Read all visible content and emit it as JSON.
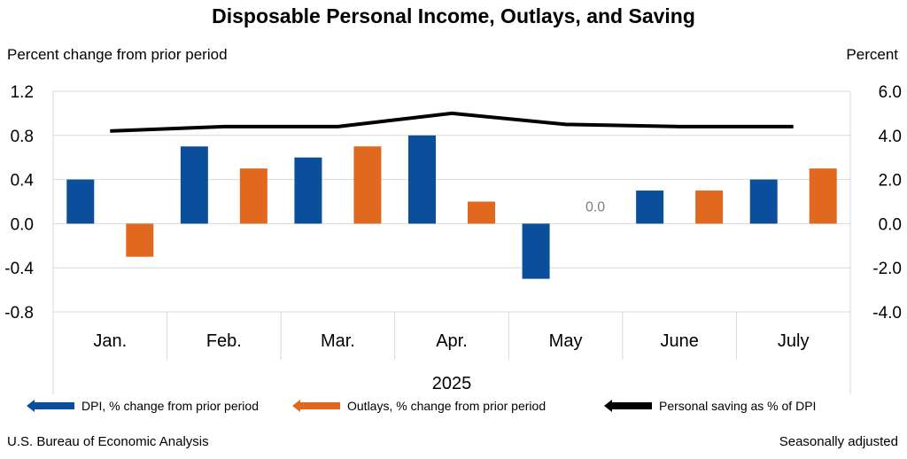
{
  "chart_data": {
    "type": "bar",
    "title": "Disposable Personal Income, Outlays, and Saving",
    "ylabel_left": "Percent change from prior period",
    "ylabel_right": "Percent",
    "xlabel": "2025",
    "categories": [
      "Jan.",
      "Feb.",
      "Mar.",
      "Apr.",
      "May",
      "June",
      "July"
    ],
    "ylim_left": [
      -0.8,
      1.2
    ],
    "yticks_left": [
      "1.2",
      "0.8",
      "0.4",
      "0.0",
      "-0.4",
      "-0.8"
    ],
    "ylim_right": [
      -4.0,
      6.0
    ],
    "yticks_right": [
      "6.0",
      "4.0",
      "2.0",
      "0.0",
      "-2.0",
      "-4.0"
    ],
    "grid": true,
    "legend_position": "bottom",
    "series": [
      {
        "name": "DPI, % change from prior period",
        "kind": "bar",
        "axis": "left",
        "color": "#0b4f9c",
        "values": [
          0.4,
          0.7,
          0.6,
          0.8,
          -0.5,
          0.3,
          0.4
        ]
      },
      {
        "name": "Outlays, % change from prior period",
        "kind": "bar",
        "axis": "left",
        "color": "#e0681f",
        "values": [
          -0.3,
          0.5,
          0.7,
          0.2,
          0.0,
          0.3,
          0.5
        ]
      },
      {
        "name": "Personal saving as % of DPI",
        "kind": "line",
        "axis": "right",
        "color": "#000000",
        "values": [
          4.2,
          4.4,
          4.4,
          5.0,
          4.5,
          4.4,
          4.4
        ]
      }
    ],
    "annotations": [
      {
        "text": "0.0",
        "category": "May",
        "series": "Outlays, % change from prior period"
      }
    ]
  },
  "footer": {
    "source": "U.S. Bureau of Economic Analysis",
    "note": "Seasonally adjusted"
  }
}
